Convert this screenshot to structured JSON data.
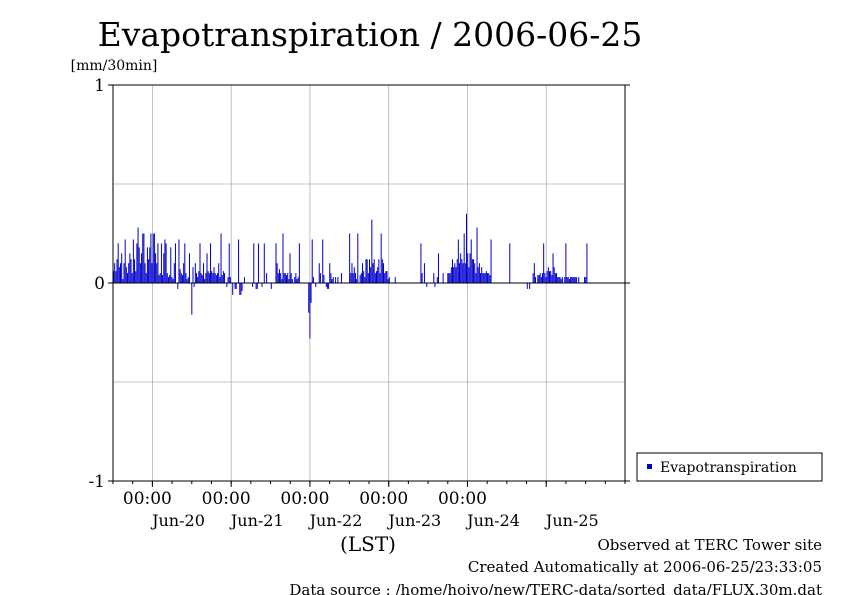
{
  "chart_data": {
    "type": "bar",
    "title": "Evapotranspiration / 2006-06-25",
    "ylabel": "[mm/30min]",
    "xlabel": "(LST)",
    "ylim": [
      -1,
      1
    ],
    "y_ticks": [
      "1",
      "0",
      "-1"
    ],
    "x_time_labels": [
      "00:00",
      "00:00",
      "00:00",
      "00:00",
      "00:00"
    ],
    "x_date_labels": [
      "Jun-20",
      "Jun-21",
      "Jun-22",
      "Jun-23",
      "Jun-24",
      "Jun-25"
    ],
    "x_start": "2006-06-19 12:00",
    "x_end": "2006-06-25 24:00",
    "grid": true,
    "legend_position": "right",
    "series": [
      {
        "name": "Evapotranspiration",
        "color": "#0000cc",
        "values": [
          0.06,
          0.1,
          0.06,
          0.12,
          0.2,
          0.08,
          0.1,
          0.15,
          0.02,
          0.1,
          0.22,
          0.08,
          0.05,
          0.1,
          0.15,
          0.12,
          0.05,
          0.22,
          0.12,
          0.06,
          0.2,
          0.28,
          0.18,
          0.1,
          0.15,
          0.25,
          0.25,
          0.1,
          0.05,
          0.18,
          0.12,
          0.18,
          0.25,
          0.1,
          0.25,
          0.25,
          0.15,
          0.1,
          0.2,
          0.04,
          0.05,
          0.2,
          0.04,
          0.15,
          0.22,
          0.2,
          0.05,
          0.03,
          0.04,
          0.18,
          0.03,
          0.02,
          0.1,
          0.2,
          0.0,
          -0.03,
          0.22,
          0.07,
          0.05,
          0.04,
          0.1,
          0.2,
          0.05,
          0.02,
          0.03,
          0.15,
          0.0,
          -0.16,
          0.08,
          -0.02,
          0.1,
          0.05,
          0.03,
          0.06,
          0.2,
          0.05,
          0.04,
          0.1,
          0.02,
          0.05,
          0.15,
          0.06,
          0.05,
          0.2,
          0.06,
          0.05,
          0.08,
          0.05,
          0.04,
          0.05,
          0.1,
          0.03,
          0.25,
          0.04,
          0.06,
          0.05,
          0.0,
          -0.02,
          0.03,
          0.2,
          0.03,
          0.0,
          -0.06,
          0.0,
          -0.03,
          -0.03,
          0.0,
          0.22,
          -0.06,
          -0.06,
          -0.04,
          0.0,
          0.03,
          0.0,
          0.0,
          0.0,
          0.0,
          0.0,
          0.0,
          -0.02,
          0.2,
          0.0,
          -0.03,
          -0.03,
          0.2,
          0.0,
          0.0,
          -0.02,
          0.0,
          0.2,
          0.0,
          0.05,
          0.0,
          0.0,
          0.0,
          -0.03,
          0.0,
          0.0,
          0.0,
          0.2,
          0.1,
          0.05,
          0.07,
          0.05,
          0.02,
          0.25,
          0.05,
          0.05,
          0.04,
          0.05,
          0.02,
          0.15,
          0.05,
          0.02,
          0.0,
          0.03,
          0.05,
          0.02,
          0.03,
          0.2,
          0.0,
          0.0,
          0.0,
          0.0,
          0.0,
          0.0,
          0.0,
          -0.15,
          -0.28,
          -0.1,
          0.22,
          0.03,
          0.0,
          -0.02,
          0.0,
          0.0,
          0.1,
          0.05,
          0.0,
          0.22,
          0.04,
          0.0,
          -0.02,
          -0.03,
          -0.03,
          0.1,
          0.05,
          0.02,
          0.03,
          0.0,
          0.03,
          0.0,
          0.03,
          0.0,
          0.0,
          0.05,
          0.0,
          0.0,
          0.0,
          0.0,
          0.0,
          0.0,
          0.25,
          0.05,
          0.1,
          0.05,
          0.08,
          0.05,
          0.02,
          0.25,
          0.0,
          0.04,
          0.05,
          0.1,
          0.06,
          0.03,
          0.12,
          0.12,
          0.05,
          0.12,
          0.08,
          0.32,
          0.1,
          0.12,
          0.05,
          0.06,
          0.08,
          0.12,
          0.05,
          0.25,
          0.12,
          0.1,
          0.05,
          0.06,
          0.06,
          0.02,
          0.03,
          0.0,
          0.0,
          0.0,
          0.0,
          0.03,
          0.0,
          0.0,
          0.0,
          0.0,
          0.0,
          0.0,
          0.0,
          0.0,
          0.0,
          0.0,
          0.0,
          0.0,
          0.0,
          0.0,
          0.0,
          0.0,
          0.0,
          0.0,
          0.0,
          0.0,
          0.0,
          0.2,
          0.05,
          0.0,
          0.1,
          0.0,
          -0.02,
          0.0,
          0.0,
          0.0,
          0.0,
          0.0,
          0.05,
          -0.02,
          0.0,
          0.03,
          0.15,
          0.0,
          0.0,
          0.0,
          0.05,
          0.0,
          0.0,
          0.0,
          0.05,
          0.05,
          0.05,
          0.08,
          0.12,
          0.08,
          0.1,
          0.08,
          0.12,
          0.22,
          0.1,
          0.15,
          0.12,
          0.1,
          0.25,
          0.1,
          0.35,
          0.15,
          0.08,
          0.15,
          0.22,
          0.12,
          0.12,
          0.1,
          0.05,
          0.28,
          0.08,
          0.1,
          0.05,
          0.08,
          0.05,
          0.05,
          0.05,
          0.06,
          0.05,
          0.05,
          0.04,
          0.22,
          0.0,
          0.0,
          0.0,
          0.0,
          0.0,
          0.0,
          0.0,
          0.0,
          0.0,
          0.0,
          0.0,
          0.0,
          0.0,
          0.0,
          0.0,
          0.2,
          0.0,
          0.0,
          0.0,
          0.0,
          0.0,
          0.0,
          0.0,
          0.0,
          0.0,
          0.0,
          0.0,
          0.0,
          0.0,
          0.0,
          -0.03,
          0.0,
          -0.03,
          0.0,
          0.0,
          0.05,
          0.1,
          0.03,
          0.0,
          0.04,
          0.04,
          0.05,
          0.03,
          0.05,
          0.2,
          0.05,
          0.03,
          0.06,
          0.08,
          0.06,
          0.06,
          0.04,
          0.15,
          0.08,
          0.05,
          0.05,
          0.03,
          0.03,
          0.03,
          0.02,
          0.03,
          0.0,
          0.03,
          0.2,
          0.03,
          0.03,
          0.02,
          0.03,
          0.03,
          0.03,
          0.03,
          0.03,
          0.03,
          0.0,
          0.03,
          0.0,
          0.0,
          0.0,
          0.0,
          0.03,
          0.03,
          0.2,
          0.0,
          0.0,
          0.0,
          0.0,
          0.0,
          0.0,
          0.0,
          0.0,
          0.0,
          0.0,
          0.0,
          0.0,
          0.0,
          0.0,
          0.0,
          0.0,
          0.0,
          0.0,
          0.0,
          0.0,
          0.0,
          0.0,
          0.0,
          0.0,
          0.0,
          0.0,
          0.0,
          0.0,
          0.0,
          0.0,
          0.0,
          0.0
        ]
      }
    ]
  },
  "footer": {
    "line1": "Observed at TERC Tower site",
    "line2": "Created Automatically at 2006-06-25/23:33:05",
    "line3": "Data source : /home/hoivo/new/TERC-data/sorted_data/FLUX.30m.dat"
  }
}
